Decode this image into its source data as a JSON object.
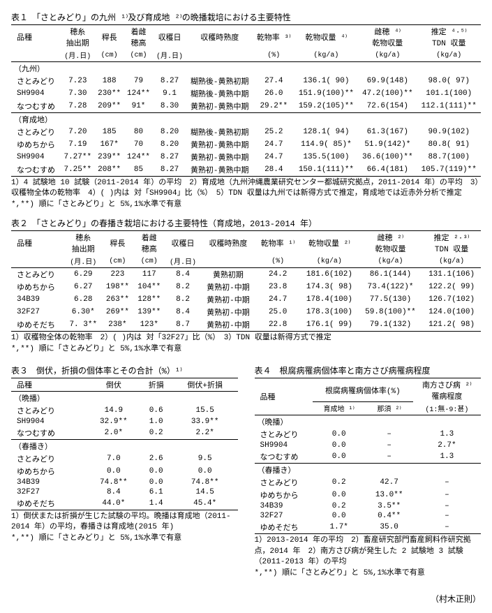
{
  "author": "（村木正則）",
  "table1": {
    "title": "表１　「さとみどり」の九州 ¹⁾及び育成地 ²⁾の晩播栽培における主要特性",
    "headers1": [
      "品種",
      "穂糸\n抽出期",
      "稈長",
      "着雌\n穂高",
      "収穫日",
      "収穫時熟度",
      "乾物率 ³⁾",
      "乾物収量 ⁴⁾",
      "雌穂 ⁴⁾\n乾物収量",
      "推定 ⁴·⁵⁾\nTDN 収量"
    ],
    "headers2": [
      "",
      "(月.日)",
      "(cm)",
      "(cm)",
      "(月.日)",
      "",
      "(%)",
      "(kg/a)",
      "(kg/a)",
      "(kg/a)"
    ],
    "groups": [
      {
        "label": "（九州）",
        "rows": [
          [
            "さとみどり",
            "7.23",
            "188",
            "79",
            "8.27",
            "糊熟後-黄熟初期",
            "27.4",
            "136.1( 90)",
            "69.9(148)",
            "98.0( 97)"
          ],
          [
            "SH9904",
            "7.30",
            "230**",
            "124**",
            "9.1",
            "糊熟後-黄熟中期",
            "26.0",
            "151.9(100)**",
            "47.2(100)**",
            "101.1(100)"
          ],
          [
            "なつむすめ",
            "7.28",
            "209**",
            "91*",
            "8.30",
            "黄熟初-黄熟中期",
            "29.2**",
            "159.2(105)**",
            "72.6(154)",
            "112.1(111)**"
          ]
        ]
      },
      {
        "label": "（育成地）",
        "rows": [
          [
            "さとみどり",
            "7.20",
            "185",
            "80",
            "8.20",
            "糊熟後-黄熟初期",
            "25.2",
            "128.1( 94)",
            "61.3(167)",
            "90.9(102)"
          ],
          [
            "ゆめちから",
            "7.19",
            "167*",
            "70",
            "8.20",
            "黄熟初-黄熟中期",
            "24.7",
            "114.9( 85)*",
            "51.9(142)*",
            "80.8( 91)"
          ],
          [
            "SH9904",
            "7.27**",
            "239**",
            "124**",
            "8.27",
            "黄熟初-黄熟中期",
            "24.7",
            "135.5(100)",
            "36.6(100)**",
            "88.7(100)"
          ],
          [
            "なつむすめ",
            "7.25**",
            "208**",
            "85",
            "8.27",
            "黄熟初-黄熟中期",
            "28.4",
            "150.1(111)**",
            "66.4(181)",
            "105.7(119)**"
          ]
        ]
      }
    ],
    "notes": "1）4 試験地 10 試験（2011-2014 年）の平均　2）育成地（九州沖縄農業研究センター都城研究拠点，2011-2014 年）の平均　3）収穫物全体の乾物率　4）( )内は 対「SH9904」比（%）　5）TDN 収量は九州では新得方式で推定，育成地では近赤外分析で推定　*,**) 順に「さとみどり」と 5%,1%水準で有意"
  },
  "table2": {
    "title": "表２　「さとみどり」の春播き栽培における主要特性（育成地，2013-2014 年）",
    "headers1": [
      "品種",
      "穂糸\n抽出期",
      "稈長",
      "着雌\n穂高",
      "収穫日",
      "収穫時熟度",
      "乾物率 ¹⁾",
      "乾物収量 ²⁾",
      "雌穂 ²⁾\n乾物収量",
      "推定 ²·³⁾\nTDN 収量"
    ],
    "headers2": [
      "",
      "(月.日)",
      "(cm)",
      "(cm)",
      "(月.日)",
      "",
      "(%)",
      "(kg/a)",
      "(kg/a)",
      "(kg/a)"
    ],
    "rows": [
      [
        "さとみどり",
        "6.29",
        "223",
        "117",
        "8.4",
        "黄熟初期",
        "24.2",
        "181.6(102)",
        "86.1(144)",
        "131.1(106)"
      ],
      [
        "ゆめちから",
        "6.27",
        "198**",
        "104**",
        "8.2",
        "黄熟初-中期",
        "23.8",
        "174.3( 98)",
        "73.4(122)*",
        "122.2( 99)"
      ],
      [
        "34B39",
        "6.28",
        "263**",
        "128**",
        "8.2",
        "黄熟初-中期",
        "24.7",
        "178.4(100)",
        "77.5(130)",
        "126.7(102)"
      ],
      [
        "32F27",
        "6.30*",
        "269**",
        "139**",
        "8.4",
        "黄熟初-中期",
        "25.0",
        "178.3(100)",
        "59.8(100)**",
        "124.0(100)"
      ],
      [
        "ゆめそだち",
        "7. 3**",
        "238*",
        "123*",
        "8.7",
        "黄熟初-中期",
        "22.8",
        "176.1( 99)",
        "79.1(132)",
        "121.2( 98)"
      ]
    ],
    "notes": "1）収穫物全体の乾物率　2）( )内は 対「32F27」比（%）　3）TDN 収量は新得方式で推定\n*,**) 順に「さとみどり」と 5%,1%水準で有意"
  },
  "table3": {
    "title": "表３　倒伏，折損の個体率とその合計（%）¹⁾",
    "headers": [
      "品種",
      "倒伏",
      "折損",
      "倒伏+折損"
    ],
    "groups": [
      {
        "label": "（晩播）",
        "rows": [
          [
            "さとみどり",
            "14.9",
            "0.6",
            "15.5"
          ],
          [
            "SH9904",
            "32.9**",
            "1.0",
            "33.9**"
          ],
          [
            "なつむすめ",
            "2.0*",
            "0.2",
            "2.2*"
          ]
        ]
      },
      {
        "label": "（春播き）",
        "rows": [
          [
            "さとみどり",
            "7.0",
            "2.6",
            "9.5"
          ],
          [
            "ゆめちから",
            "0.0",
            "0.0",
            "0.0"
          ],
          [
            "34B39",
            "74.8**",
            "0.0",
            "74.8**"
          ],
          [
            "32F27",
            "8.4",
            "6.1",
            "14.5"
          ],
          [
            "ゆめそだち",
            "44.0*",
            "1.4",
            "45.4*"
          ]
        ]
      }
    ],
    "notes": "1）倒伏または折損が生じた試験の平均。晩播は育成地（2011-2014 年）の平均，春播きは育成地(2015 年)\n*,**) 順に「さとみどり」と 5%,1%水準で有意"
  },
  "table4": {
    "title": "表４　根腐病罹病個体率と南方さび病罹病程度",
    "headers1": [
      "品種",
      "根腐病罹病個体率(%)",
      "南方さび病 ²⁾\n罹病程度"
    ],
    "headers2": [
      "",
      "育成地 ¹⁾",
      "那須 ²⁾",
      "(1:無-9:甚)"
    ],
    "groups": [
      {
        "label": "（晩播）",
        "rows": [
          [
            "さとみどり",
            "0.0",
            "–",
            "1.3"
          ],
          [
            "SH9904",
            "0.0",
            "–",
            "2.7*"
          ],
          [
            "なつむすめ",
            "0.0",
            "–",
            "1.3"
          ]
        ]
      },
      {
        "label": "（春播き）",
        "rows": [
          [
            "さとみどり",
            "0.2",
            "42.7",
            "–"
          ],
          [
            "ゆめちから",
            "0.0",
            "13.0**",
            "–"
          ],
          [
            "34B39",
            "0.2",
            "3.5**",
            "–"
          ],
          [
            "32F27",
            "0.0",
            "0.4**",
            "–"
          ],
          [
            "ゆめそだち",
            "1.7*",
            "35.0",
            "–"
          ]
        ]
      }
    ],
    "notes": "1）2013-2014 年の平均　2）畜産研究部門畜産飼料作研究拠点，2014 年　2）南方さび病が発生した 2 試験地 3 試験（2011-2013 年）の平均\n*,**) 順に「さとみどり」と 5%,1%水準で有意"
  }
}
